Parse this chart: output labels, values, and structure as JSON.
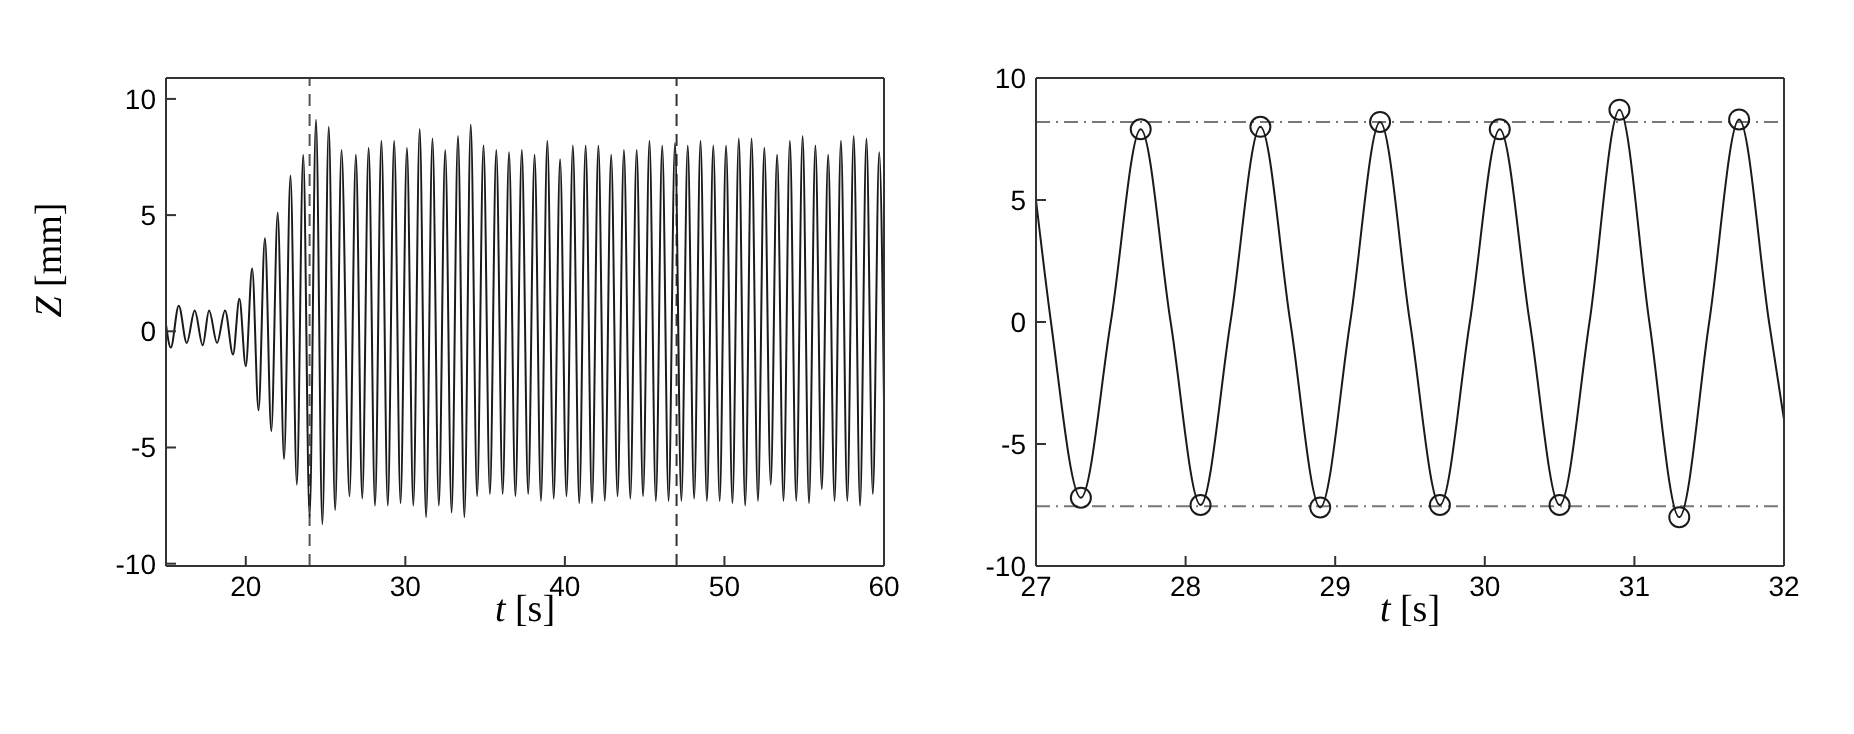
{
  "chart_data": [
    {
      "type": "line",
      "xlabel": "t [s]",
      "ylabel": "Z [mm]",
      "xlim": [
        15,
        60
      ],
      "ylim": [
        -10.1,
        10.9
      ],
      "xticks": [
        20,
        30,
        40,
        50,
        60
      ],
      "yticks": [
        -10,
        -5,
        0,
        5,
        10
      ],
      "ref_lines": [
        {
          "axis": "x",
          "value": 24,
          "color": "#555555",
          "line_style": "dashed"
        },
        {
          "axis": "x",
          "value": 47,
          "color": "#333333",
          "line_style": "dashed"
        }
      ],
      "series": [
        {
          "color": "#1a1a1a",
          "marker": "none",
          "line_style": "solid",
          "x": [
            15,
            15.3,
            15.8,
            16.3,
            16.8,
            17.3,
            17.7,
            18.2,
            18.7,
            19.2,
            19.6,
            20.0,
            20.4,
            20.8,
            21.2,
            21.6,
            22.0,
            22.4,
            22.8,
            23.2,
            23.6,
            24.0,
            24.4,
            24.8,
            25.2,
            25.6,
            26.0,
            26.5,
            26.9,
            27.3,
            27.7,
            28.1,
            28.5,
            28.9,
            29.3,
            29.7,
            30.1,
            30.5,
            30.9,
            31.3,
            31.7,
            32.1,
            32.5,
            32.9,
            33.3,
            33.7,
            34.1,
            34.5,
            34.9,
            35.3,
            35.7,
            36.1,
            36.5,
            36.9,
            37.3,
            37.7,
            38.1,
            38.5,
            38.9,
            39.3,
            39.7,
            40.1,
            40.5,
            40.9,
            41.3,
            41.7,
            42.1,
            42.5,
            42.9,
            43.3,
            43.7,
            44.1,
            44.5,
            44.9,
            45.3,
            45.7,
            46.1,
            46.5,
            46.9,
            47.3,
            47.7,
            48.1,
            48.5,
            48.9,
            49.3,
            49.7,
            50.1,
            50.5,
            50.9,
            51.3,
            51.7,
            52.1,
            52.5,
            52.9,
            53.3,
            53.7,
            54.1,
            54.5,
            54.9,
            55.3,
            55.7,
            56.1,
            56.5,
            56.9,
            57.3,
            57.7,
            58.1,
            58.5,
            58.9,
            59.3,
            59.7,
            60
          ],
          "values": [
            0.3,
            -0.7,
            1.1,
            -0.5,
            0.9,
            -0.6,
            0.9,
            -0.5,
            0.9,
            -1.0,
            1.4,
            -1.5,
            2.7,
            -3.4,
            4.0,
            -4.3,
            5.1,
            -5.5,
            6.7,
            -6.6,
            7.6,
            -8.0,
            9.1,
            -8.3,
            8.8,
            -7.7,
            7.8,
            -7.1,
            7.6,
            -7.2,
            7.9,
            -7.5,
            8.2,
            -7.5,
            8.2,
            -7.4,
            7.9,
            -7.5,
            8.7,
            -8.0,
            8.3,
            -7.5,
            7.8,
            -7.8,
            8.4,
            -8.0,
            8.9,
            -7.1,
            8.0,
            -7.0,
            7.8,
            -7.0,
            7.7,
            -7.1,
            7.8,
            -7.0,
            7.6,
            -7.3,
            8.2,
            -7.2,
            7.4,
            -7.1,
            8.0,
            -7.4,
            8.0,
            -7.4,
            8.0,
            -7.3,
            7.6,
            -7.1,
            7.8,
            -7.2,
            7.8,
            -7.1,
            8.2,
            -7.3,
            8.0,
            -7.3,
            8.1,
            -7.3,
            8.0,
            -7.2,
            8.2,
            -7.3,
            8.0,
            -7.3,
            8.0,
            -7.4,
            8.3,
            -7.5,
            8.3,
            -7.3,
            7.9,
            -6.6,
            7.6,
            -7.3,
            8.2,
            -7.3,
            8.4,
            -7.4,
            8.0,
            -6.8,
            7.6,
            -7.3,
            8.2,
            -7.3,
            8.4,
            -7.5,
            8.3,
            -7.0,
            7.7,
            -3.0
          ]
        }
      ]
    },
    {
      "type": "line",
      "xlabel": "t [s]",
      "xlim": [
        27,
        32
      ],
      "ylim": [
        -10,
        10
      ],
      "xticks": [
        27,
        28,
        29,
        30,
        31,
        32
      ],
      "yticks": [
        -10,
        -5,
        0,
        5,
        10
      ],
      "ref_lines": [
        {
          "axis": "y",
          "value": 8.2,
          "color": "#777777",
          "line_style": "dashdot"
        },
        {
          "axis": "y",
          "value": -7.55,
          "color": "#777777",
          "line_style": "dashdot"
        }
      ],
      "series": [
        {
          "color": "#1a1a1a",
          "marker": "none",
          "line_style": "solid",
          "x": [
            27,
            27.1,
            27.3,
            27.5,
            27.7,
            27.9,
            28.1,
            28.3,
            28.5,
            28.7,
            28.9,
            29.1,
            29.3,
            29.5,
            29.7,
            29.9,
            30.1,
            30.3,
            30.5,
            30.7,
            30.9,
            31.1,
            31.3,
            31.5,
            31.7,
            31.9,
            32
          ],
          "values": [
            5,
            0,
            -7.2,
            0,
            7.9,
            0,
            -7.5,
            0,
            8.0,
            0,
            -7.6,
            0,
            8.2,
            0,
            -7.5,
            0,
            7.9,
            0,
            -7.5,
            0,
            8.7,
            0,
            -8.0,
            0,
            8.3,
            0,
            -4
          ]
        },
        {
          "type": "scatter",
          "color": "#1a1a1a",
          "marker": "circle",
          "x": [
            27.3,
            27.7,
            28.1,
            28.5,
            28.9,
            29.3,
            29.7,
            30.1,
            30.5,
            30.9,
            31.3,
            31.7
          ],
          "values": [
            -7.2,
            7.9,
            -7.5,
            8.0,
            -7.6,
            8.2,
            -7.5,
            7.9,
            -7.5,
            8.7,
            -8.0,
            8.3
          ]
        }
      ]
    }
  ]
}
